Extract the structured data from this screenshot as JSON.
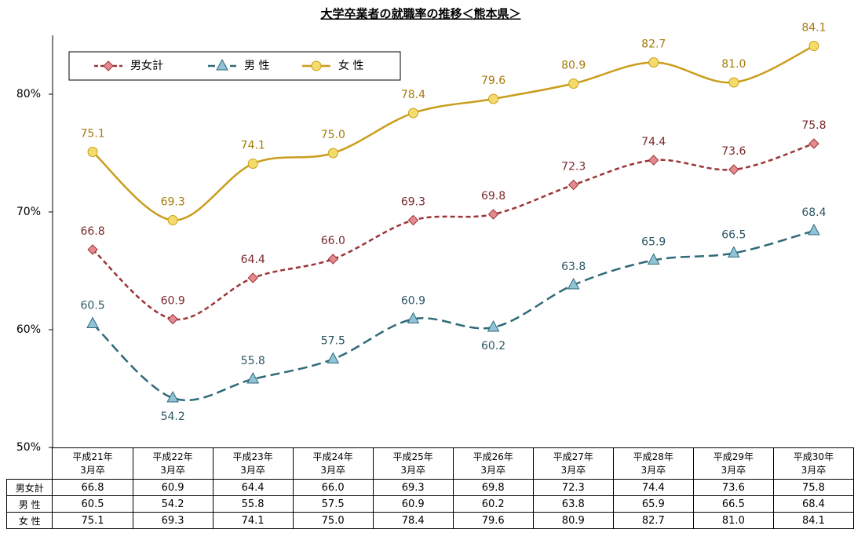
{
  "chart_data": {
    "type": "line",
    "title": "大学卒業者の就職率の推移＜熊本県＞",
    "categories": [
      "平成21年\n3月卒",
      "平成22年\n3月卒",
      "平成23年\n3月卒",
      "平成24年\n3月卒",
      "平成25年\n3月卒",
      "平成26年\n3月卒",
      "平成27年\n3月卒",
      "平成28年\n3月卒",
      "平成29年\n3月卒",
      "平成30年\n3月卒"
    ],
    "series": [
      {
        "name": "男女計",
        "color": "#9b3436",
        "values": [
          66.8,
          60.9,
          64.4,
          66.0,
          69.3,
          69.8,
          72.3,
          74.4,
          73.6,
          75.8
        ],
        "value_labels": [
          "66.8",
          "60.9",
          "64.4",
          "66.0",
          "69.3",
          "69.8",
          "72.3",
          "74.4",
          "73.6",
          "75.8"
        ]
      },
      {
        "name": "男 性",
        "color": "#2f6a78",
        "values": [
          60.5,
          54.2,
          55.8,
          57.5,
          60.9,
          60.2,
          63.8,
          65.9,
          66.5,
          68.4
        ],
        "value_labels": [
          "60.5",
          "54.2",
          "55.8",
          "57.5",
          "60.9",
          "60.2",
          "63.8",
          "65.9",
          "66.5",
          "68.4"
        ]
      },
      {
        "name": "女 性",
        "color": "#c99d1c",
        "values": [
          75.1,
          69.3,
          74.1,
          75.0,
          78.4,
          79.6,
          80.9,
          82.7,
          81.0,
          84.1
        ],
        "value_labels": [
          "75.1",
          "69.3",
          "74.1",
          "75.0",
          "78.4",
          "79.6",
          "80.9",
          "82.7",
          "81.0",
          "84.1"
        ]
      }
    ],
    "ylim": [
      50,
      85
    ],
    "yticks": [
      {
        "value": 50,
        "label": "50%"
      },
      {
        "value": 60,
        "label": "60%"
      },
      {
        "value": 70,
        "label": "70%"
      },
      {
        "value": 80,
        "label": "80%"
      }
    ],
    "legend": "upper left"
  }
}
